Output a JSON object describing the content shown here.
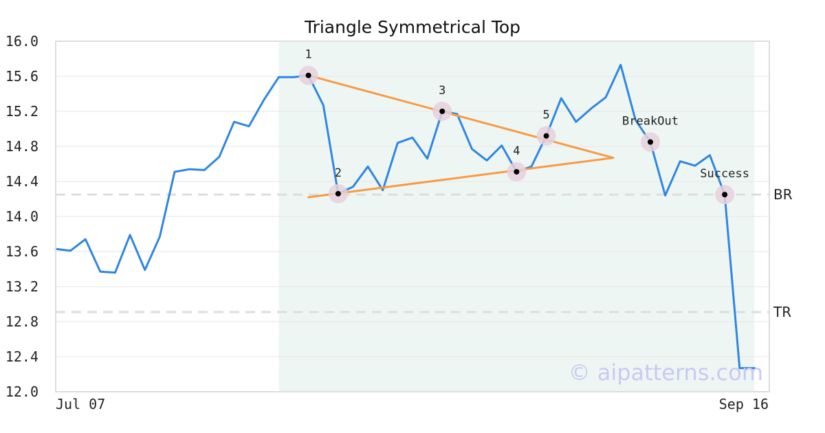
{
  "chart_data": {
    "type": "line",
    "title": "Triangle Symmetrical Top",
    "xlabel": "",
    "ylabel": "",
    "x_range": [
      0,
      48
    ],
    "ylim": [
      12.0,
      16.0
    ],
    "y_ticks": [
      "16.0",
      "15.6",
      "15.2",
      "14.8",
      "14.4",
      "14.0",
      "13.6",
      "13.2",
      "12.8",
      "12.4",
      "12.0"
    ],
    "x_tick_labels": [
      {
        "x": 0,
        "label": "Jul 07"
      },
      {
        "x": 48,
        "label": "Sep 16"
      }
    ],
    "grid": {
      "horizontal": true,
      "vertical": false
    },
    "series": [
      {
        "color": "#2f86e0",
        "values": [
          13.63,
          13.61,
          13.74,
          13.37,
          13.36,
          13.79,
          13.39,
          13.77,
          14.51,
          14.54,
          14.53,
          14.68,
          15.08,
          15.03,
          15.33,
          15.59,
          15.59,
          15.61,
          15.27,
          14.26,
          14.34,
          14.57,
          14.3,
          14.84,
          14.9,
          14.66,
          15.2,
          15.17,
          14.77,
          14.64,
          14.81,
          14.51,
          14.57,
          14.92,
          15.35,
          15.08,
          15.23,
          15.36,
          15.73,
          15.1,
          14.85,
          14.24,
          14.63,
          14.58,
          14.7,
          14.25,
          12.27,
          12.27
        ]
      }
    ],
    "pattern_region": {
      "x_start": 15,
      "x_end": 47,
      "color": "#eef6f3"
    },
    "trend_lines": [
      {
        "name": "upper",
        "color": "#f79b45",
        "points": [
          [
            17,
            15.61
          ],
          [
            37.5,
            14.67
          ]
        ]
      },
      {
        "name": "lower",
        "color": "#f79b45",
        "points": [
          [
            17,
            14.22
          ],
          [
            37.5,
            14.67
          ]
        ]
      }
    ],
    "levels": [
      {
        "label": "BR",
        "y": 14.25,
        "color": "#dddddd"
      },
      {
        "label": "TR",
        "y": 12.91,
        "color": "#dddddd"
      }
    ],
    "annotations": [
      {
        "label": "1",
        "x": 17,
        "y": 15.61,
        "label_pos": "above"
      },
      {
        "label": "2",
        "x": 19,
        "y": 14.26,
        "label_pos": "above"
      },
      {
        "label": "3",
        "x": 26,
        "y": 15.2,
        "label_pos": "above"
      },
      {
        "label": "4",
        "x": 31,
        "y": 14.51,
        "label_pos": "above"
      },
      {
        "label": "5",
        "x": 33,
        "y": 14.92,
        "label_pos": "above"
      },
      {
        "label": "BreakOut",
        "x": 40,
        "y": 14.85,
        "label_pos": "above"
      },
      {
        "label": "Success",
        "x": 45,
        "y": 14.25,
        "label_pos": "above"
      }
    ],
    "watermark": "© aipatterns.com",
    "colors": {
      "line": "#2f86e0",
      "trend": "#f79b45",
      "marker_halo": "#e6d0dc",
      "marker_dot": "#000000",
      "axis_frame": "#dddddd",
      "grid": "#e6e6e6"
    }
  }
}
